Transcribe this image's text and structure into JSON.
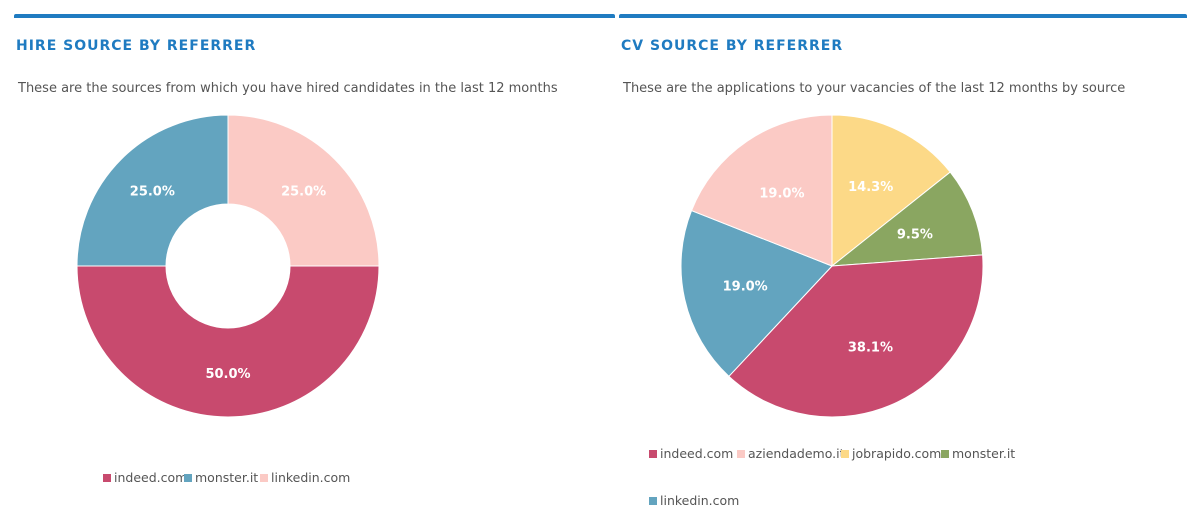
{
  "colors": {
    "accent": "#1f7bc1",
    "indeed": "#c84a6e",
    "monster": "#63a4bf",
    "linkedin": "#fbcac5",
    "aziendademo": "#fbcac5",
    "jobrapido": "#fcd987",
    "monster_green": "#8aa661"
  },
  "hire": {
    "title": "HIRE SOURCE BY REFERRER",
    "subtitle": "These are the sources from which you have hired candidates in the last 12 months"
  },
  "cv": {
    "title": "CV SOURCE BY REFERRER",
    "subtitle": "These are the applications to your vacancies of the last 12 months by source"
  },
  "chart_data": [
    {
      "type": "pie",
      "variant": "donut",
      "title": "HIRE SOURCE BY REFERRER",
      "slices": [
        {
          "name": "linkedin.com",
          "value": 25.0,
          "label": "25.0%",
          "color": "#fbcac5"
        },
        {
          "name": "indeed.com",
          "value": 50.0,
          "label": "50.0%",
          "color": "#c84a6e"
        },
        {
          "name": "monster.it",
          "value": 25.0,
          "label": "25.0%",
          "color": "#63a4bf"
        }
      ],
      "legend": [
        {
          "name": "indeed.com",
          "color": "#c84a6e"
        },
        {
          "name": "monster.it",
          "color": "#63a4bf"
        },
        {
          "name": "linkedin.com",
          "color": "#fbcac5"
        }
      ],
      "legend_position": "bottom"
    },
    {
      "type": "pie",
      "title": "CV SOURCE BY REFERRER",
      "slices": [
        {
          "name": "jobrapido.com",
          "value": 14.3,
          "label": "14.3%",
          "color": "#fcd987"
        },
        {
          "name": "monster.it",
          "value": 9.5,
          "label": "9.5%",
          "color": "#8aa661"
        },
        {
          "name": "indeed.com",
          "value": 38.1,
          "label": "38.1%",
          "color": "#c84a6e"
        },
        {
          "name": "linkedin.com",
          "value": 19.0,
          "label": "19.0%",
          "color": "#63a4bf"
        },
        {
          "name": "aziendademo.it",
          "value": 19.0,
          "label": "19.0%",
          "color": "#fbcac5"
        }
      ],
      "legend": [
        {
          "name": "indeed.com",
          "color": "#c84a6e"
        },
        {
          "name": "aziendademo.it",
          "color": "#fbcac5"
        },
        {
          "name": "jobrapido.com",
          "color": "#fcd987"
        },
        {
          "name": "monster.it",
          "color": "#8aa661"
        },
        {
          "name": "linkedin.com",
          "color": "#63a4bf"
        }
      ],
      "legend_position": "bottom"
    }
  ]
}
